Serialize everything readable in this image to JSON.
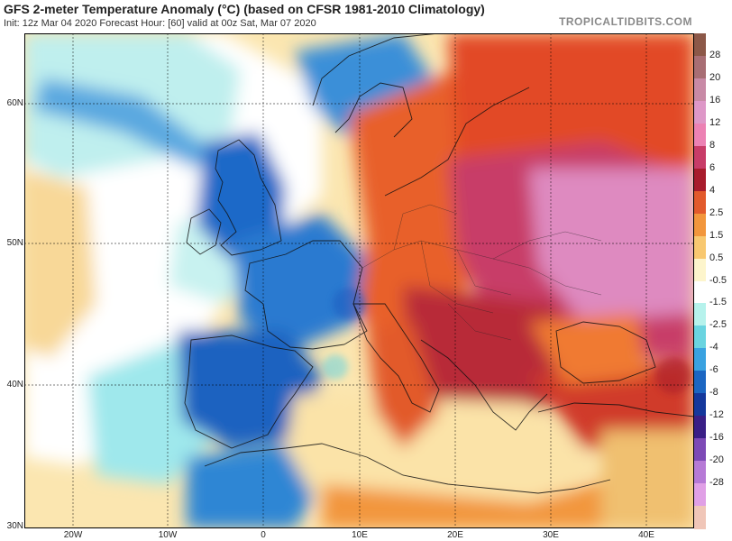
{
  "header": {
    "title": "GFS 2-meter Temperature Anomaly (°C) (based on CFSR 1981-2010 Climatology)",
    "subtitle": "Init: 12z Mar 04 2020   Forecast Hour: [60]   valid at 00z Sat, Mar 07 2020",
    "watermark": "TROPICALTIDBITS.COM"
  },
  "map": {
    "lat_labels": [
      "60N",
      "50N",
      "40N",
      "30N"
    ],
    "lon_labels": [
      "20W",
      "10W",
      "0",
      "10E",
      "20E",
      "30E",
      "40E"
    ]
  },
  "colorbar": {
    "labels": [
      "28",
      "20",
      "16",
      "12",
      "8",
      "6",
      "4",
      "2.5",
      "1.5",
      "0.5",
      "-0.5",
      "-1.5",
      "-2.5",
      "-4",
      "-6",
      "-8",
      "-12",
      "-16",
      "-20",
      "-28"
    ],
    "colors": [
      "#8c5848",
      "#a86e74",
      "#c88aa6",
      "#de98c8",
      "#ec82b4",
      "#c83c68",
      "#a81c2c",
      "#e25a2c",
      "#f2963c",
      "#f8c870",
      "#fdf5cc",
      "#ffffff",
      "#b6f2ec",
      "#6ad4e0",
      "#3aa2e0",
      "#1c66c2",
      "#15389c",
      "#3a1f86",
      "#7d4ab6",
      "#b67ad6",
      "#e0a0e6",
      "#f0c6b8"
    ]
  }
}
